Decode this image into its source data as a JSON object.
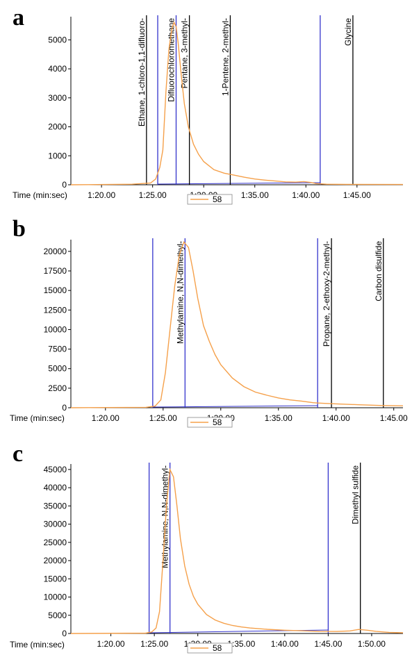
{
  "chart_data": [
    {
      "type": "line",
      "panel_label": "a",
      "xlabel": "Time (min:sec)",
      "xlim": [
        77.0,
        109.5
      ],
      "ylim": [
        0,
        5800
      ],
      "y_ticks": [
        0,
        1000,
        2000,
        3000,
        4000,
        5000
      ],
      "x_ticks": [
        80,
        85,
        90,
        95,
        100,
        105
      ],
      "x_tick_labels": [
        "1:20.00",
        "1:25.00",
        "1:30.00",
        "1:35.00",
        "1:40.00",
        "1:45.00"
      ],
      "legend": [
        "58"
      ],
      "series": [
        {
          "name": "58",
          "color": "#f5a04a",
          "x": [
            77.0,
            83.0,
            84.8,
            85.3,
            85.7,
            86.0,
            86.3,
            86.6,
            86.9,
            87.1,
            87.3,
            87.5,
            87.8,
            88.1,
            88.5,
            89.0,
            89.5,
            90.0,
            91.0,
            92.0,
            93.0,
            94.0,
            95.0,
            96.0,
            97.0,
            98.0,
            99.0,
            99.8,
            100.5,
            101.0,
            102.0,
            104.0,
            109.5
          ],
          "y": [
            0,
            20,
            60,
            200,
            600,
            1200,
            3200,
            4700,
            5400,
            5600,
            5450,
            4900,
            3800,
            2800,
            2000,
            1400,
            1050,
            800,
            520,
            400,
            330,
            260,
            200,
            160,
            130,
            100,
            90,
            110,
            80,
            40,
            20,
            15,
            10
          ]
        }
      ],
      "annotations": [
        {
          "label": "Ethane, 1-chloro-1,1-difluoro-",
          "x": 84.4,
          "color": "#000000"
        },
        {
          "label": "",
          "x": 85.5,
          "color": "#3333cc"
        },
        {
          "label": "Difluorochloromethane",
          "x": 87.3,
          "color": "#3333cc"
        },
        {
          "label": "Pentane, 3-methyl-",
          "x": 88.6,
          "color": "#000000"
        },
        {
          "label": "1-Pentene, 2-methyl-",
          "x": 92.6,
          "color": "#000000"
        },
        {
          "label": "",
          "x": 101.4,
          "color": "#3333cc"
        },
        {
          "label": "Glycine",
          "x": 104.6,
          "color": "#000000"
        }
      ]
    },
    {
      "type": "line",
      "panel_label": "b",
      "xlabel": "Time (min:sec)",
      "xlim": [
        77.0,
        105.8
      ],
      "ylim": [
        0,
        21500
      ],
      "y_ticks": [
        0,
        2500,
        5000,
        7500,
        10000,
        12500,
        15000,
        17500,
        20000
      ],
      "x_ticks": [
        80,
        85,
        90,
        95,
        100,
        105
      ],
      "x_tick_labels": [
        "1:20.00",
        "1:25.00",
        "1:30.00",
        "1:35.00",
        "1:40.00",
        "1:45.00"
      ],
      "legend": [
        "58"
      ],
      "series": [
        {
          "name": "58",
          "color": "#f5a04a",
          "x": [
            77.0,
            83.5,
            84.3,
            84.8,
            85.2,
            85.6,
            86.0,
            86.4,
            86.8,
            87.2,
            87.6,
            88.0,
            88.5,
            89.0,
            89.5,
            90.0,
            91.0,
            92.0,
            93.0,
            94.0,
            95.0,
            96.0,
            97.0,
            98.0,
            98.4,
            99.0,
            100.0,
            102.0,
            104.0,
            105.8
          ],
          "y": [
            0,
            50,
            200,
            1000,
            4500,
            10000,
            15500,
            19500,
            21200,
            20500,
            17500,
            14000,
            10500,
            8500,
            6800,
            5500,
            3800,
            2700,
            2000,
            1600,
            1250,
            1000,
            850,
            650,
            600,
            560,
            500,
            380,
            280,
            250
          ]
        }
      ],
      "annotations": [
        {
          "label": "",
          "x": 84.1,
          "color": "#3333cc"
        },
        {
          "label": "Methylamine, N,N-dimethyl-",
          "x": 86.9,
          "color": "#3333cc"
        },
        {
          "label": "",
          "x": 98.4,
          "color": "#3333cc"
        },
        {
          "label": "Propane, 2-ethoxy-2-methyl-",
          "x": 99.6,
          "color": "#000000"
        },
        {
          "label": "Carbon disulfide",
          "x": 104.1,
          "color": "#000000"
        }
      ]
    },
    {
      "type": "line",
      "panel_label": "c",
      "xlabel": "Time (min:sec)",
      "xlim": [
        75.4,
        113.6
      ],
      "ylim": [
        0,
        46500
      ],
      "y_ticks": [
        0,
        5000,
        10000,
        15000,
        20000,
        25000,
        30000,
        35000,
        40000,
        45000
      ],
      "x_ticks": [
        80,
        85,
        90,
        95,
        100,
        105,
        110
      ],
      "x_tick_labels": [
        "1:20.00",
        "1:25.00",
        "1:30.00",
        "1:35.00",
        "1:40.00",
        "1:45.00",
        "1:50.00"
      ],
      "legend": [
        "58"
      ],
      "series": [
        {
          "name": "58",
          "color": "#f5a04a",
          "x": [
            75.4,
            84.0,
            84.7,
            85.2,
            85.6,
            86.0,
            86.4,
            86.8,
            87.2,
            87.6,
            88.0,
            88.5,
            89.0,
            89.5,
            90.0,
            91.0,
            92.0,
            93.0,
            94.0,
            95.0,
            96.0,
            98.0,
            100.0,
            102.0,
            104.0,
            106.0,
            107.5,
            108.5,
            109.5,
            110.5,
            112.0,
            113.6
          ],
          "y": [
            0,
            100,
            400,
            1500,
            6000,
            20000,
            35000,
            45000,
            43000,
            35000,
            26000,
            18500,
            13500,
            10200,
            8000,
            5200,
            3700,
            2800,
            2200,
            1800,
            1500,
            1150,
            900,
            750,
            600,
            550,
            700,
            1100,
            900,
            600,
            300,
            200
          ]
        }
      ],
      "annotations": [
        {
          "label": "",
          "x": 84.4,
          "color": "#3333cc"
        },
        {
          "label": "Methylamine, N,N-dimethyl-",
          "x": 86.8,
          "color": "#3333cc"
        },
        {
          "label": "",
          "x": 105.0,
          "color": "#3333cc"
        },
        {
          "label": "Dimethyl sulfide",
          "x": 108.7,
          "color": "#000000"
        }
      ]
    }
  ]
}
